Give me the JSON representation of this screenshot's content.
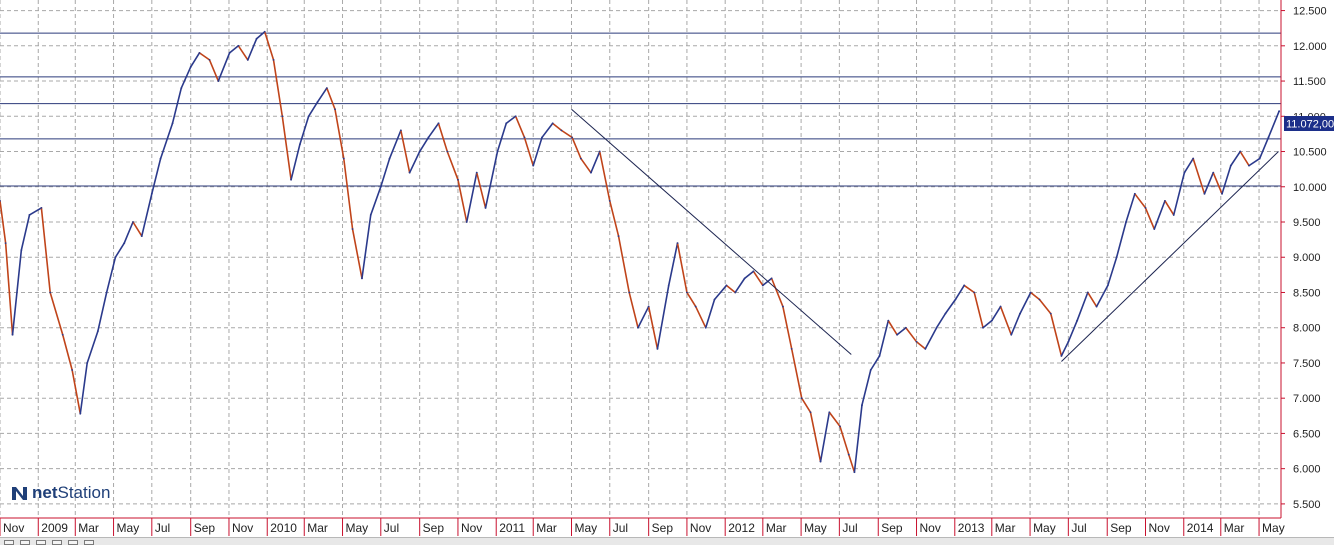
{
  "logo": {
    "text_bold": "net",
    "text_rest": "Station",
    "icon": "n-logo-icon"
  },
  "price_label": "11.072,00",
  "colors": {
    "up": "#2b3a8c",
    "down": "#c0441a",
    "hline": "#2b3a7a",
    "grid": "#a8a8a8",
    "axis": "#c8102e"
  },
  "toolbar": {
    "icons": [
      "cursor-icon",
      "crosshair-icon",
      "zoom-icon",
      "zoom-out-icon",
      "refresh-icon",
      "settings-icon"
    ]
  },
  "chart_data": {
    "type": "line",
    "title": "",
    "xlabel": "",
    "ylabel": "",
    "ylim": [
      5300,
      12650
    ],
    "x_range": [
      "2008-11-01",
      "2014-06-05"
    ],
    "y_ticks": [
      {
        "value": 5500,
        "label": "5.500"
      },
      {
        "value": 6000,
        "label": "6.000"
      },
      {
        "value": 6500,
        "label": "6.500"
      },
      {
        "value": 7000,
        "label": "7.000"
      },
      {
        "value": 7500,
        "label": "7.500"
      },
      {
        "value": 8000,
        "label": "8.000"
      },
      {
        "value": 8500,
        "label": "8.500"
      },
      {
        "value": 9000,
        "label": "9.000"
      },
      {
        "value": 9500,
        "label": "9.500"
      },
      {
        "value": 10000,
        "label": "10.000"
      },
      {
        "value": 10500,
        "label": "10.500"
      },
      {
        "value": 11000,
        "label": "11.000"
      },
      {
        "value": 11500,
        "label": "11.500"
      },
      {
        "value": 12000,
        "label": "12.000"
      },
      {
        "value": 12500,
        "label": "12.500"
      }
    ],
    "x_ticks": [
      {
        "date": "2008-11-01",
        "label": "Nov"
      },
      {
        "date": "2009-01-01",
        "label": "2009"
      },
      {
        "date": "2009-03-01",
        "label": "Mar"
      },
      {
        "date": "2009-05-01",
        "label": "May"
      },
      {
        "date": "2009-07-01",
        "label": "Jul"
      },
      {
        "date": "2009-09-01",
        "label": "Sep"
      },
      {
        "date": "2009-11-01",
        "label": "Nov"
      },
      {
        "date": "2010-01-01",
        "label": "2010"
      },
      {
        "date": "2010-03-01",
        "label": "Mar"
      },
      {
        "date": "2010-05-01",
        "label": "May"
      },
      {
        "date": "2010-07-01",
        "label": "Jul"
      },
      {
        "date": "2010-09-01",
        "label": "Sep"
      },
      {
        "date": "2010-11-01",
        "label": "Nov"
      },
      {
        "date": "2011-01-01",
        "label": "2011"
      },
      {
        "date": "2011-03-01",
        "label": "Mar"
      },
      {
        "date": "2011-05-01",
        "label": "May"
      },
      {
        "date": "2011-07-01",
        "label": "Jul"
      },
      {
        "date": "2011-09-01",
        "label": "Sep"
      },
      {
        "date": "2011-11-01",
        "label": "Nov"
      },
      {
        "date": "2012-01-01",
        "label": "2012"
      },
      {
        "date": "2012-03-01",
        "label": "Mar"
      },
      {
        "date": "2012-05-01",
        "label": "May"
      },
      {
        "date": "2012-07-01",
        "label": "Jul"
      },
      {
        "date": "2012-09-01",
        "label": "Sep"
      },
      {
        "date": "2012-11-01",
        "label": "Nov"
      },
      {
        "date": "2013-01-01",
        "label": "2013"
      },
      {
        "date": "2013-03-01",
        "label": "Mar"
      },
      {
        "date": "2013-05-01",
        "label": "May"
      },
      {
        "date": "2013-07-01",
        "label": "Jul"
      },
      {
        "date": "2013-09-01",
        "label": "Sep"
      },
      {
        "date": "2013-11-01",
        "label": "Nov"
      },
      {
        "date": "2014-01-01",
        "label": "2014"
      },
      {
        "date": "2014-03-01",
        "label": "Mar"
      },
      {
        "date": "2014-05-01",
        "label": "May"
      }
    ],
    "horizontal_lines": [
      12180,
      11560,
      11180,
      10680,
      10010
    ],
    "trendlines": [
      {
        "from": [
          "2011-05-01",
          11100
        ],
        "to": [
          "2012-07-20",
          7620
        ]
      },
      {
        "from": [
          "2013-06-20",
          7520
        ],
        "to": [
          "2014-06-01",
          10500
        ]
      }
    ],
    "series": [
      {
        "points": [
          [
            "2008-11-01",
            9800
          ],
          [
            "2008-11-10",
            9200
          ],
          [
            "2008-11-21",
            7900
          ],
          [
            "2008-12-05",
            9100
          ],
          [
            "2008-12-18",
            9600
          ],
          [
            "2009-01-06",
            9700
          ],
          [
            "2009-01-20",
            8500
          ],
          [
            "2009-02-09",
            7900
          ],
          [
            "2009-02-24",
            7400
          ],
          [
            "2009-03-09",
            6780
          ],
          [
            "2009-03-20",
            7500
          ],
          [
            "2009-04-06",
            7950
          ],
          [
            "2009-04-20",
            8500
          ],
          [
            "2009-05-04",
            9000
          ],
          [
            "2009-05-18",
            9200
          ],
          [
            "2009-06-01",
            9500
          ],
          [
            "2009-06-15",
            9300
          ],
          [
            "2009-07-01",
            9900
          ],
          [
            "2009-07-15",
            10400
          ],
          [
            "2009-08-03",
            10900
          ],
          [
            "2009-08-17",
            11400
          ],
          [
            "2009-09-01",
            11700
          ],
          [
            "2009-09-15",
            11900
          ],
          [
            "2009-10-01",
            11800
          ],
          [
            "2009-10-15",
            11500
          ],
          [
            "2009-11-02",
            11900
          ],
          [
            "2009-11-16",
            12000
          ],
          [
            "2009-12-01",
            11800
          ],
          [
            "2009-12-15",
            12100
          ],
          [
            "2009-12-28",
            12200
          ],
          [
            "2010-01-11",
            11800
          ],
          [
            "2010-01-25",
            11000
          ],
          [
            "2010-02-08",
            10100
          ],
          [
            "2010-02-22",
            10600
          ],
          [
            "2010-03-08",
            11000
          ],
          [
            "2010-03-22",
            11200
          ],
          [
            "2010-04-06",
            11400
          ],
          [
            "2010-04-19",
            11100
          ],
          [
            "2010-05-03",
            10400
          ],
          [
            "2010-05-17",
            9400
          ],
          [
            "2010-06-01",
            8700
          ],
          [
            "2010-06-15",
            9600
          ],
          [
            "2010-07-01",
            10000
          ],
          [
            "2010-07-15",
            10400
          ],
          [
            "2010-08-02",
            10800
          ],
          [
            "2010-08-16",
            10200
          ],
          [
            "2010-09-01",
            10500
          ],
          [
            "2010-09-15",
            10700
          ],
          [
            "2010-10-01",
            10900
          ],
          [
            "2010-10-15",
            10500
          ],
          [
            "2010-11-01",
            10100
          ],
          [
            "2010-11-15",
            9500
          ],
          [
            "2010-12-01",
            10200
          ],
          [
            "2010-12-15",
            9700
          ],
          [
            "2011-01-03",
            10500
          ],
          [
            "2011-01-17",
            10900
          ],
          [
            "2011-02-01",
            11000
          ],
          [
            "2011-02-15",
            10700
          ],
          [
            "2011-03-01",
            10300
          ],
          [
            "2011-03-15",
            10700
          ],
          [
            "2011-04-01",
            10900
          ],
          [
            "2011-04-15",
            10800
          ],
          [
            "2011-05-02",
            10700
          ],
          [
            "2011-05-16",
            10400
          ],
          [
            "2011-06-01",
            10200
          ],
          [
            "2011-06-15",
            10500
          ],
          [
            "2011-07-01",
            9800
          ],
          [
            "2011-07-15",
            9300
          ],
          [
            "2011-08-01",
            8500
          ],
          [
            "2011-08-15",
            8000
          ],
          [
            "2011-09-01",
            8300
          ],
          [
            "2011-09-15",
            7700
          ],
          [
            "2011-10-03",
            8600
          ],
          [
            "2011-10-17",
            9200
          ],
          [
            "2011-11-01",
            8500
          ],
          [
            "2011-11-15",
            8300
          ],
          [
            "2011-12-01",
            8000
          ],
          [
            "2011-12-15",
            8400
          ],
          [
            "2012-01-03",
            8600
          ],
          [
            "2012-01-17",
            8500
          ],
          [
            "2012-02-01",
            8700
          ],
          [
            "2012-02-15",
            8800
          ],
          [
            "2012-03-01",
            8600
          ],
          [
            "2012-03-15",
            8700
          ],
          [
            "2012-04-02",
            8300
          ],
          [
            "2012-04-16",
            7700
          ],
          [
            "2012-05-02",
            7000
          ],
          [
            "2012-05-16",
            6800
          ],
          [
            "2012-06-01",
            6100
          ],
          [
            "2012-06-15",
            6800
          ],
          [
            "2012-07-02",
            6600
          ],
          [
            "2012-07-16",
            6200
          ],
          [
            "2012-07-25",
            5950
          ],
          [
            "2012-08-06",
            6900
          ],
          [
            "2012-08-20",
            7400
          ],
          [
            "2012-09-03",
            7600
          ],
          [
            "2012-09-17",
            8100
          ],
          [
            "2012-10-01",
            7900
          ],
          [
            "2012-10-15",
            8000
          ],
          [
            "2012-11-01",
            7800
          ],
          [
            "2012-11-15",
            7700
          ],
          [
            "2012-12-03",
            8000
          ],
          [
            "2012-12-17",
            8200
          ],
          [
            "2013-01-02",
            8400
          ],
          [
            "2013-01-16",
            8600
          ],
          [
            "2013-02-01",
            8500
          ],
          [
            "2013-02-15",
            8000
          ],
          [
            "2013-03-01",
            8100
          ],
          [
            "2013-03-15",
            8300
          ],
          [
            "2013-04-01",
            7900
          ],
          [
            "2013-04-15",
            8200
          ],
          [
            "2013-05-02",
            8500
          ],
          [
            "2013-05-16",
            8400
          ],
          [
            "2013-06-03",
            8200
          ],
          [
            "2013-06-20",
            7600
          ],
          [
            "2013-07-01",
            7800
          ],
          [
            "2013-07-15",
            8100
          ],
          [
            "2013-08-01",
            8500
          ],
          [
            "2013-08-15",
            8300
          ],
          [
            "2013-09-02",
            8600
          ],
          [
            "2013-09-16",
            9000
          ],
          [
            "2013-10-01",
            9500
          ],
          [
            "2013-10-15",
            9900
          ],
          [
            "2013-11-01",
            9700
          ],
          [
            "2013-11-15",
            9400
          ],
          [
            "2013-12-02",
            9800
          ],
          [
            "2013-12-16",
            9600
          ],
          [
            "2014-01-02",
            10200
          ],
          [
            "2014-01-16",
            10400
          ],
          [
            "2014-02-03",
            9900
          ],
          [
            "2014-02-17",
            10200
          ],
          [
            "2014-03-03",
            9900
          ],
          [
            "2014-03-17",
            10300
          ],
          [
            "2014-04-01",
            10500
          ],
          [
            "2014-04-15",
            10300
          ],
          [
            "2014-05-02",
            10400
          ],
          [
            "2014-05-16",
            10700
          ],
          [
            "2014-06-02",
            11072
          ]
        ]
      }
    ]
  }
}
